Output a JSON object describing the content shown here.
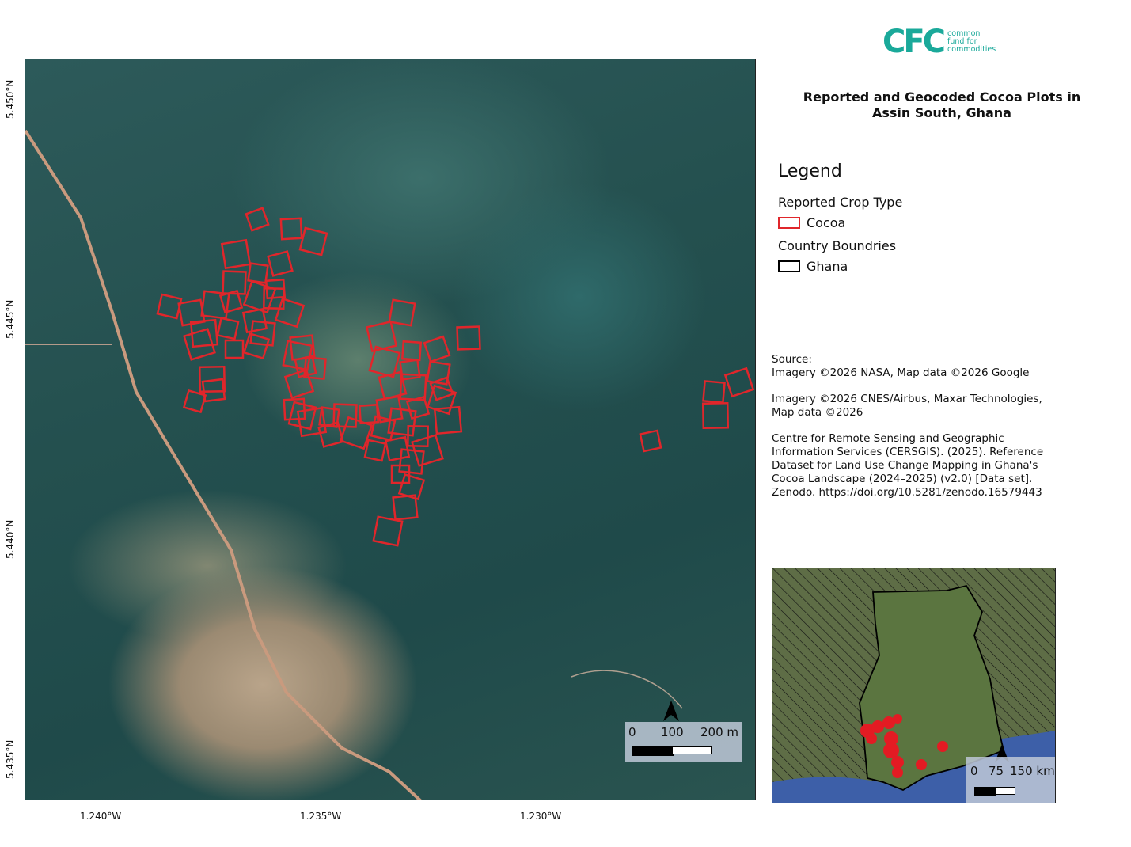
{
  "logo": {
    "mark": "CFC",
    "text_lines": [
      "common",
      "fund for",
      "commodities"
    ],
    "color": "#1aa99a"
  },
  "title": "Reported and Geocoded Cocoa Plots in Assin South, Ghana",
  "legend": {
    "title": "Legend",
    "groups": [
      {
        "heading": "Reported Crop Type",
        "item": "Cocoa",
        "color": "#e0262b"
      },
      {
        "heading": "Country Boundries",
        "item": "Ghana",
        "color": "#000000"
      }
    ]
  },
  "source": {
    "heading": "Source:",
    "lines": [
      "Imagery ©2026 NASA, Map data ©2026 Google",
      "Imagery ©2026 CNES/Airbus, Maxar Technologies, Map data ©2026",
      "Centre for Remote Sensing and Geographic Information Services (CERSGIS). (2025). Reference Dataset for Land Use Change Mapping in Ghana's Cocoa Landscape (2024–2025) (v2.0) [Data set]. Zenodo. https://doi.org/10.5281/zenodo.16579443"
    ]
  },
  "map": {
    "lat_labels": [
      "5.450°N",
      "5.445°N",
      "5.440°N",
      "5.435°N"
    ],
    "lon_labels": [
      "1.240°W",
      "1.235°W",
      "1.230°W"
    ],
    "scale_labels": [
      "0",
      "100",
      "200 m"
    ],
    "plot_color": "#e0262b"
  },
  "inset": {
    "scale_labels": [
      "0",
      "75",
      "150 km"
    ]
  }
}
